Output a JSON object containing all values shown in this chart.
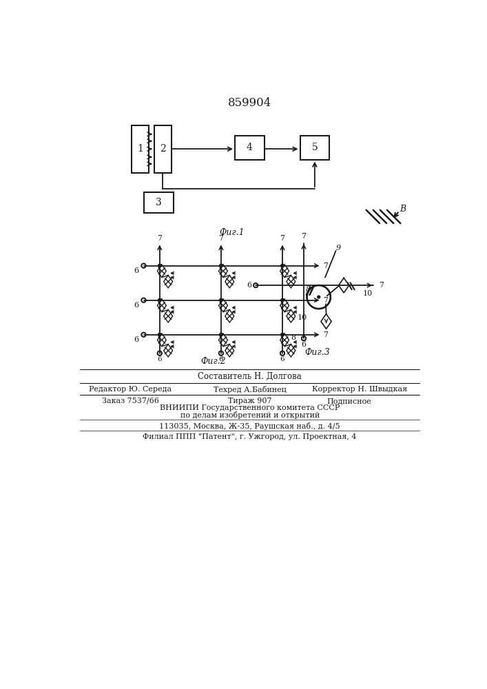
{
  "patent_number": "859904",
  "fig1_label": "Фиг.1",
  "fig2_label": "Фиг.2",
  "fig3_label": "Фиг.3",
  "footer_line0": "Составитель Н. Долгова",
  "footer_line1a": "Редактор Ю. Середа",
  "footer_line1b": "Техред А.Бабинец",
  "footer_line1c": "Корректор Н. Швыдкая",
  "footer_line2a": "Заказ 7537/66",
  "footer_line2b": "Тираж 907",
  "footer_line2c": "Подписное",
  "footer_line3": "ВНИИПИ Государственного комитета СССР",
  "footer_line4": "по делам изобретений и открытий",
  "footer_line5": "113035, Москва, Ж-35, Раушская наб., д. 4/5",
  "footer_line6": "Филиал ППП \"Патент\", г. Ужгород, ул. Проектная, 4",
  "bg_color": "#ffffff",
  "line_color": "#1a1a1a"
}
